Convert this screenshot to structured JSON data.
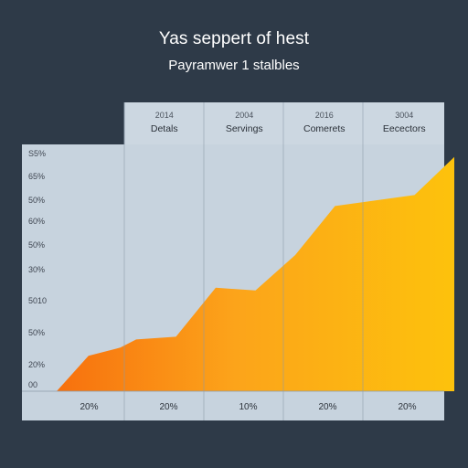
{
  "chart_data": {
    "type": "area",
    "title": "Yas seppert of hest",
    "subtitle": "Payramwer 1 stalbles",
    "header_columns": [
      {
        "year": "2014",
        "label": "Detals"
      },
      {
        "year": "2004",
        "label": "Servings"
      },
      {
        "year": "2016",
        "label": "Comerets"
      },
      {
        "year": "3004",
        "label": "Eecectors"
      }
    ],
    "y_tick_labels": [
      "S5%",
      "65%",
      "50%",
      "60%",
      "50%",
      "30%",
      "5010",
      "50%",
      "20%",
      "00"
    ],
    "x_tick_labels": [
      "20%",
      "20%",
      "10%",
      "20%",
      "20%"
    ],
    "x": [
      0,
      0.4,
      0.8,
      1,
      1.5,
      2,
      2.5,
      3,
      3.5,
      4,
      4.5,
      5
    ],
    "values": [
      0,
      13,
      16,
      19,
      20,
      38,
      37,
      50,
      68,
      70,
      72,
      86
    ],
    "ylim": [
      0,
      100
    ],
    "colors": {
      "area_start": "#f7700e",
      "area_mid": "#fca41a",
      "area_end": "#fdc20c",
      "plot_bg": "#c7d3de",
      "header_bg": "#ccd7e1",
      "column_line": "#8c9aa8"
    }
  }
}
